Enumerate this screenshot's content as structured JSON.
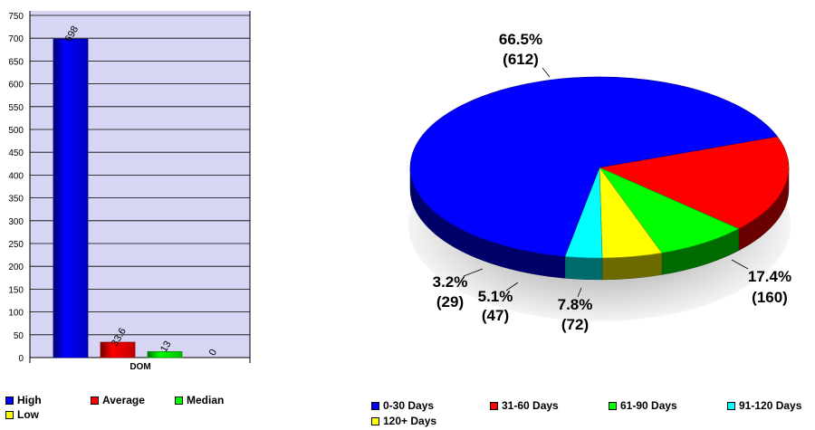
{
  "chart_data": [
    {
      "type": "bar",
      "categories": [
        "DOM"
      ],
      "series": [
        {
          "name": "High",
          "values": [
            698
          ],
          "color": "#0000ff"
        },
        {
          "name": "Average",
          "values": [
            33.6
          ],
          "color": "#ff0000"
        },
        {
          "name": "Median",
          "values": [
            13
          ],
          "color": "#00ff00"
        },
        {
          "name": "Low",
          "values": [
            0
          ],
          "color": "#ffff00"
        }
      ],
      "ylim": [
        0,
        750
      ],
      "yticks": [
        "0",
        "50",
        "100",
        "150",
        "200",
        "250",
        "300",
        "350",
        "400",
        "450",
        "500",
        "550",
        "600",
        "650",
        "700",
        "750"
      ],
      "grid": true,
      "legend": "bottom"
    },
    {
      "type": "pie",
      "slices": [
        {
          "label": "0-30 Days",
          "value": 612,
          "percent": "66.5%",
          "count_label": "(612)",
          "color": "#0000ff"
        },
        {
          "label": "31-60 Days",
          "value": 160,
          "percent": "17.4%",
          "count_label": "(160)",
          "color": "#ff0000"
        },
        {
          "label": "61-90 Days",
          "value": 72,
          "percent": "7.8%",
          "count_label": "(72)",
          "color": "#00ff00"
        },
        {
          "label": "91-120 Days",
          "value": 29,
          "percent": "3.2%",
          "count_label": "(29)",
          "color": "#00ffff"
        },
        {
          "label": "120+ Days",
          "value": 47,
          "percent": "5.1%",
          "count_label": "(47)",
          "color": "#ffff00"
        }
      ],
      "legend": "bottom"
    }
  ]
}
